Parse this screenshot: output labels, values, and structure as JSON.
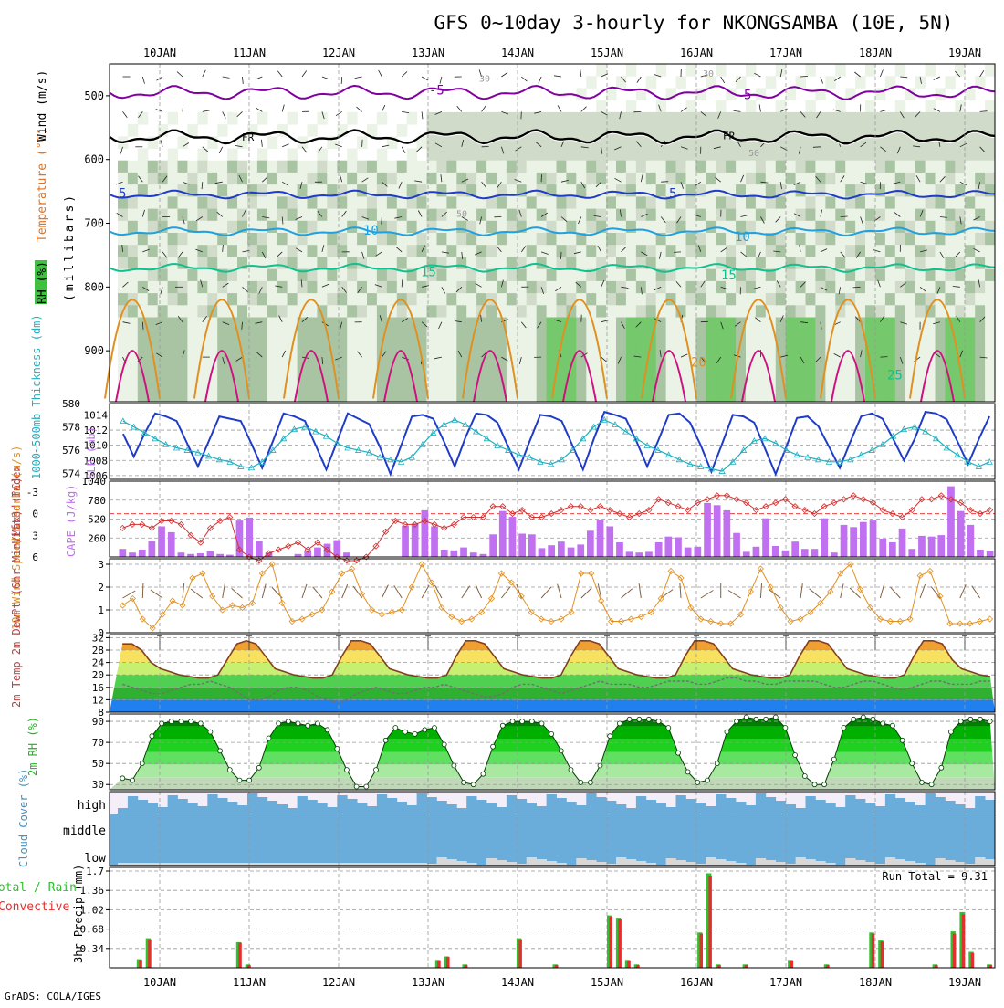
{
  "title": "GFS 0~10day 3-hourly for NKONGSAMBA (10E, 5N)",
  "footer": "GrADS: COLA/IGES",
  "days": [
    "10JAN",
    "11JAN",
    "12JAN",
    "13JAN",
    "14JAN",
    "15JAN",
    "16JAN",
    "17JAN",
    "18JAN",
    "19JAN"
  ],
  "chart_data": [
    {
      "id": "upper-air",
      "type": "heatmap",
      "ylabel_parts": [
        "RH (%)",
        "Temperature (°C)",
        "Wind (m/s)"
      ],
      "ylabel_unit": "(millibars)",
      "y_ticks": [
        500,
        600,
        700,
        800,
        900
      ],
      "ylim": [
        980,
        450
      ],
      "rh_shading": [
        30,
        50,
        70,
        90
      ],
      "temperature_contour_labels": [
        "-5",
        "FR",
        "5",
        "10",
        "15",
        "20",
        "25"
      ],
      "rh_contour_labels": [
        "30",
        "50"
      ]
    },
    {
      "id": "thickness-slp",
      "type": "line",
      "ylabel_left": "1000~500mb Thickness (dm)",
      "ylabel_right": "SLP (mb)",
      "y_ticks_left": [
        574,
        576,
        578,
        580
      ],
      "y_ticks_right": [
        1006,
        1008,
        1010,
        1012,
        1014
      ],
      "ylim_left": [
        573.5,
        580
      ],
      "ylim_right": [
        1005.5,
        1015.5
      ],
      "series": [
        {
          "name": "SLP (mb)",
          "axis": "right",
          "color": "#1f3cc8",
          "values": [
            1011.5,
            1008.5,
            1011.5,
            1014.2,
            1013.8,
            1013.2,
            1010.2,
            1007.2,
            1010.5,
            1013.8,
            1013.5,
            1013.2,
            1010.2,
            1007.0,
            1010.5,
            1014.2,
            1013.8,
            1013.2,
            1010.0,
            1006.8,
            1010.5,
            1014.2,
            1013.5,
            1012.8,
            1009.8,
            1006.2,
            1010.0,
            1013.8,
            1014.0,
            1013.5,
            1010.5,
            1007.2,
            1011.0,
            1014.2,
            1014.0,
            1013.0,
            1009.8,
            1006.8,
            1010.5,
            1014.0,
            1013.8,
            1013.2,
            1010.0,
            1006.8,
            1010.8,
            1014.4,
            1014.0,
            1013.5,
            1010.5,
            1007.2,
            1010.5,
            1014.0,
            1014.2,
            1013.0,
            1010.0,
            1006.5,
            1010.2,
            1014.0,
            1013.8,
            1013.0,
            1009.6,
            1006.2,
            1009.8,
            1013.6,
            1013.8,
            1012.5,
            1009.8,
            1007.0,
            1010.5,
            1013.8,
            1014.2,
            1013.5,
            1010.8,
            1008.0,
            1010.8,
            1014.4,
            1014.2,
            1013.4,
            1010.5,
            1007.5,
            1010.8,
            1013.8
          ]
        },
        {
          "name": "1000~500mb Thickness (dm)",
          "axis": "left",
          "color": "#20b0c0",
          "values": [
            578.5,
            578.0,
            577.5,
            577.0,
            576.5,
            576.2,
            576.0,
            575.8,
            575.5,
            575.2,
            575.0,
            574.6,
            574.5,
            575.0,
            576.0,
            577.0,
            577.8,
            578.0,
            577.6,
            577.2,
            576.6,
            576.2,
            576.0,
            575.8,
            575.4,
            575.2,
            575.0,
            575.4,
            576.5,
            577.5,
            578.2,
            578.6,
            578.2,
            577.6,
            577.0,
            576.4,
            576.0,
            575.6,
            575.4,
            575.0,
            574.8,
            575.2,
            576.0,
            577.0,
            578.0,
            578.6,
            578.2,
            577.6,
            577.0,
            576.4,
            576.0,
            575.6,
            575.2,
            574.8,
            574.6,
            574.4,
            574.2,
            575.0,
            576.0,
            576.8,
            577.0,
            576.6,
            576.0,
            575.6,
            575.4,
            575.2,
            575.0,
            575.0,
            575.2,
            575.6,
            576.0,
            576.5,
            577.2,
            577.8,
            578.0,
            577.6,
            577.0,
            576.2,
            575.6,
            575.0,
            574.6,
            575.0
          ]
        }
      ]
    },
    {
      "id": "cape-li",
      "type": "bar",
      "ylabel_left": "Lifted Index",
      "ylabel_right": "CAPE (J/kg)",
      "y_ticks_left": [
        -3,
        0,
        3,
        6
      ],
      "y_ticks_right": [
        260,
        520,
        780,
        1040
      ],
      "ylim_right": [
        0,
        1040
      ],
      "series": [
        {
          "name": "CAPE (J/kg)",
          "color": "#c070f0",
          "values": [
            110,
            60,
            100,
            220,
            420,
            340,
            60,
            40,
            50,
            80,
            40,
            30,
            500,
            540,
            220,
            60,
            0,
            0,
            40,
            80,
            130,
            180,
            230,
            60,
            0,
            0,
            0,
            0,
            0,
            430,
            460,
            640,
            420,
            100,
            90,
            130,
            60,
            40,
            310,
            630,
            550,
            320,
            310,
            120,
            160,
            210,
            130,
            170,
            360,
            510,
            420,
            200,
            70,
            60,
            70,
            200,
            280,
            270,
            130,
            140,
            740,
            710,
            640,
            330,
            70,
            140,
            530,
            150,
            90,
            210,
            110,
            110,
            530,
            60,
            440,
            410,
            480,
            500,
            250,
            200,
            390,
            110,
            290,
            280,
            300,
            970,
            630,
            440,
            100,
            80
          ]
        },
        {
          "name": "Lifted Index",
          "color": "#d03030",
          "values": [
            2.0,
            1.5,
            1.5,
            2.0,
            1.0,
            1.0,
            1.5,
            3.0,
            4.0,
            2.0,
            1.0,
            0.5,
            5.0,
            6.0,
            6.5,
            5.5,
            5.0,
            4.5,
            4.0,
            5.0,
            4.0,
            5.0,
            6.0,
            6.5,
            6.5,
            6.0,
            4.5,
            2.5,
            1.0,
            1.5,
            1.5,
            1.0,
            1.5,
            2.0,
            1.5,
            0.5,
            0.5,
            0.5,
            -1.0,
            -1.0,
            0.0,
            -0.5,
            0.5,
            0.5,
            0.0,
            -0.5,
            -1.0,
            -1.0,
            -0.5,
            -1.0,
            -0.5,
            0.0,
            0.5,
            0.0,
            -0.5,
            -2.0,
            -1.5,
            -1.0,
            -0.5,
            -1.5,
            -2.0,
            -2.5,
            -2.5,
            -2.0,
            -1.5,
            -0.5,
            -1.0,
            -1.5,
            -2.0,
            -1.0,
            -0.5,
            0.0,
            -1.0,
            -1.5,
            -2.0,
            -2.5,
            -2.0,
            -1.5,
            -0.5,
            0.0,
            0.5,
            -0.5,
            -2.0,
            -2.0,
            -2.5,
            -2.0,
            -1.5,
            -0.5,
            0.0,
            -0.5
          ]
        }
      ]
    },
    {
      "id": "wind10m",
      "type": "line",
      "ylabel": "10m Wind Speed & Barbs (m/s)",
      "y_ticks": [
        0,
        1,
        2,
        3
      ],
      "ylim": [
        0,
        3
      ],
      "series": [
        {
          "name": "10m Wind Speed",
          "color": "#e09020",
          "values": [
            1.2,
            1.5,
            0.6,
            0.2,
            0.8,
            1.4,
            1.2,
            2.4,
            2.6,
            1.6,
            1.0,
            1.2,
            1.1,
            1.3,
            2.6,
            3.0,
            1.3,
            0.5,
            0.6,
            0.8,
            1.0,
            1.8,
            2.6,
            2.8,
            1.7,
            1.0,
            0.8,
            0.9,
            1.0,
            2.0,
            3.0,
            2.2,
            1.1,
            0.7,
            0.5,
            0.6,
            0.9,
            1.5,
            2.6,
            2.2,
            1.6,
            0.9,
            0.6,
            0.5,
            0.6,
            0.9,
            2.6,
            2.6,
            1.4,
            0.5,
            0.5,
            0.6,
            0.7,
            0.9,
            1.5,
            2.7,
            2.4,
            1.1,
            0.6,
            0.5,
            0.4,
            0.4,
            0.8,
            1.8,
            2.8,
            2.0,
            1.1,
            0.5,
            0.6,
            0.9,
            1.3,
            1.8,
            2.6,
            3.0,
            1.9,
            1.1,
            0.6,
            0.5,
            0.5,
            0.6,
            2.5,
            2.7,
            1.6,
            0.4,
            0.4,
            0.4,
            0.5,
            0.6
          ]
        }
      ]
    },
    {
      "id": "temp2m",
      "type": "area",
      "ylabel": "2m Temp 2m DewPt (6hr Min/Max) (°C)",
      "y_ticks": [
        8,
        12,
        16,
        20,
        24,
        28,
        32
      ],
      "ylim": [
        8,
        33
      ],
      "series": [
        {
          "name": "2m Temp",
          "color": "#804020",
          "values": [
            30,
            30,
            28,
            24,
            22,
            21,
            20,
            19.5,
            19,
            19,
            20,
            25,
            30,
            31,
            30,
            26,
            22,
            21,
            20,
            19.5,
            19,
            19,
            20,
            26,
            31,
            31,
            30,
            26,
            22,
            21,
            20,
            19.5,
            19,
            19,
            20,
            26,
            31,
            31,
            30,
            26,
            22,
            21,
            20,
            19.5,
            19,
            19,
            20,
            26,
            31,
            31,
            30,
            26,
            22,
            21,
            20,
            19.5,
            19,
            19,
            20,
            26,
            31,
            31,
            30,
            26,
            22,
            21,
            20,
            19.5,
            19,
            19,
            20,
            26,
            31,
            31,
            30,
            26,
            22,
            21,
            20,
            19.5,
            19,
            19,
            20,
            26,
            31,
            31,
            30,
            25,
            22,
            21,
            20,
            19.5
          ]
        },
        {
          "name": "2m DewPt",
          "color": "#707070",
          "values": [
            17,
            16,
            15,
            14,
            14,
            15,
            16,
            17,
            17,
            18,
            17,
            16,
            14,
            12,
            12,
            13,
            15,
            16,
            16,
            15,
            13,
            12,
            11,
            12,
            14,
            15,
            16,
            15,
            14,
            14,
            15,
            16,
            16,
            17,
            16,
            15,
            14,
            13,
            13,
            14,
            16,
            17,
            17,
            16,
            15,
            14,
            15,
            16,
            17,
            18,
            17,
            17,
            17,
            16,
            16,
            17,
            18,
            18,
            18,
            17,
            17,
            18,
            19,
            19,
            18,
            18,
            17,
            17,
            18,
            18,
            18,
            18,
            17,
            16,
            16,
            17,
            18,
            18,
            17,
            16,
            15,
            16,
            17,
            18,
            18,
            17,
            17,
            17,
            18,
            18
          ]
        }
      ]
    },
    {
      "id": "rh2m",
      "type": "area",
      "ylabel": "2m RH (%)",
      "y_ticks": [
        30,
        50,
        70,
        90
      ],
      "ylim": [
        25,
        97
      ],
      "series": [
        {
          "name": "2m RH",
          "color": "#00c000",
          "values": [
            36,
            34,
            50,
            76,
            88,
            90,
            90,
            90,
            88,
            80,
            62,
            44,
            34,
            34,
            46,
            74,
            88,
            90,
            88,
            86,
            88,
            82,
            64,
            44,
            28,
            28,
            44,
            72,
            84,
            80,
            78,
            82,
            84,
            68,
            48,
            32,
            30,
            40,
            66,
            86,
            90,
            90,
            90,
            88,
            78,
            62,
            44,
            32,
            32,
            48,
            76,
            88,
            92,
            92,
            92,
            90,
            84,
            60,
            42,
            32,
            34,
            50,
            80,
            90,
            94,
            92,
            92,
            94,
            84,
            58,
            38,
            30,
            30,
            54,
            84,
            92,
            94,
            92,
            88,
            86,
            72,
            50,
            32,
            30,
            46,
            80,
            90,
            92,
            92,
            90
          ]
        }
      ]
    },
    {
      "id": "cloud",
      "type": "bar",
      "ylabel": "Cloud Cover (%)",
      "tick_labels": [
        "high",
        "middle",
        "low"
      ]
    },
    {
      "id": "precip",
      "type": "bar",
      "ylabel_parts": [
        "Total / Rain",
        "Convective"
      ],
      "ylabel": "3hr Precip (mm)",
      "annotation": "Run Total = 9.31",
      "y_ticks": [
        0.34,
        0.68,
        1.02,
        1.36,
        1.7
      ],
      "ylim": [
        0,
        1.7
      ],
      "series": [
        {
          "name": "Total",
          "color": "#30c030",
          "values": [
            0,
            0,
            0.15,
            0.52,
            0,
            0,
            0,
            0,
            0,
            0,
            0,
            0,
            0,
            0.45,
            0.06,
            0,
            0,
            0,
            0,
            0,
            0,
            0,
            0,
            0,
            0,
            0,
            0,
            0,
            0,
            0,
            0,
            0,
            0,
            0,
            0,
            0.14,
            0.2,
            0,
            0.06,
            0,
            0,
            0,
            0,
            0,
            0.52,
            0,
            0,
            0,
            0.06,
            0,
            0,
            0,
            0,
            0,
            0.92,
            0.88,
            0.14,
            0.06,
            0,
            0,
            0,
            0,
            0,
            0,
            0.62,
            1.66,
            0.06,
            0,
            0,
            0.06,
            0,
            0,
            0,
            0,
            0.14,
            0,
            0,
            0,
            0.06,
            0,
            0,
            0,
            0,
            0.62,
            0.48,
            0,
            0,
            0,
            0,
            0,
            0.06,
            0,
            0.64,
            0.98,
            0.28,
            0,
            0.06
          ]
        },
        {
          "name": "Convective",
          "color": "#e03030",
          "values": [
            0,
            0,
            0.14,
            0.5,
            0,
            0,
            0,
            0,
            0,
            0,
            0,
            0,
            0,
            0.44,
            0.05,
            0,
            0,
            0,
            0,
            0,
            0,
            0,
            0,
            0,
            0,
            0,
            0,
            0,
            0,
            0,
            0,
            0,
            0,
            0,
            0,
            0.13,
            0.19,
            0,
            0.05,
            0,
            0,
            0,
            0,
            0,
            0.5,
            0,
            0,
            0,
            0.05,
            0,
            0,
            0,
            0,
            0,
            0.9,
            0.85,
            0.13,
            0.05,
            0,
            0,
            0,
            0,
            0,
            0,
            0.6,
            1.62,
            0.05,
            0,
            0,
            0.05,
            0,
            0,
            0,
            0,
            0.13,
            0,
            0,
            0,
            0.05,
            0,
            0,
            0,
            0,
            0.6,
            0.46,
            0,
            0,
            0,
            0,
            0,
            0.05,
            0,
            0.6,
            0.94,
            0.26,
            0,
            0.05
          ]
        }
      ]
    }
  ]
}
